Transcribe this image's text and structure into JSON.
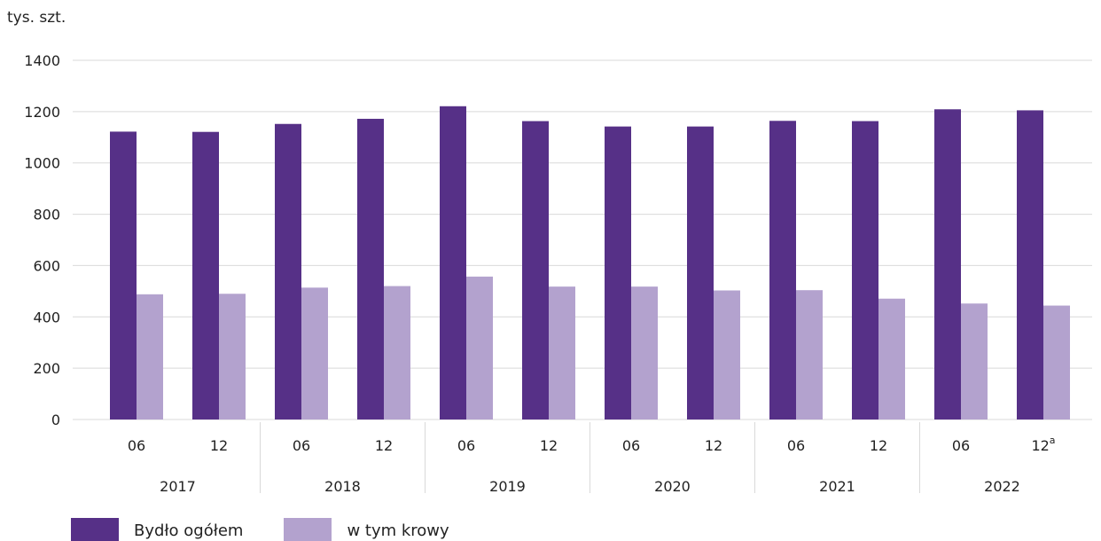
{
  "chart_data": {
    "type": "bar",
    "unit_label": "tys. szt.",
    "yticks": [
      "0",
      "200",
      "400",
      "600",
      "800",
      "1000",
      "1200",
      "1400"
    ],
    "ylim": [
      0,
      1400
    ],
    "grid": true,
    "categories": [
      "06",
      "12",
      "06",
      "12",
      "06",
      "12",
      "06",
      "12",
      "06",
      "12",
      "06",
      "12"
    ],
    "category_superscripts": [
      "",
      "",
      "",
      "",
      "",
      "",
      "",
      "",
      "",
      "",
      "",
      "a"
    ],
    "groups": [
      "2017",
      "2018",
      "2019",
      "2020",
      "2021",
      "2022"
    ],
    "series": [
      {
        "name": "Bydło ogółem",
        "color": "#563087",
        "values": [
          1122,
          1121,
          1152,
          1172,
          1221,
          1163,
          1142,
          1142,
          1164,
          1163,
          1209,
          1205
        ]
      },
      {
        "name": "w tym krowy",
        "color": "#b3a2ce",
        "values": [
          488,
          490,
          514,
          520,
          557,
          518,
          518,
          503,
          504,
          471,
          452,
          444
        ]
      }
    ],
    "legend_position": "bottom-left"
  }
}
